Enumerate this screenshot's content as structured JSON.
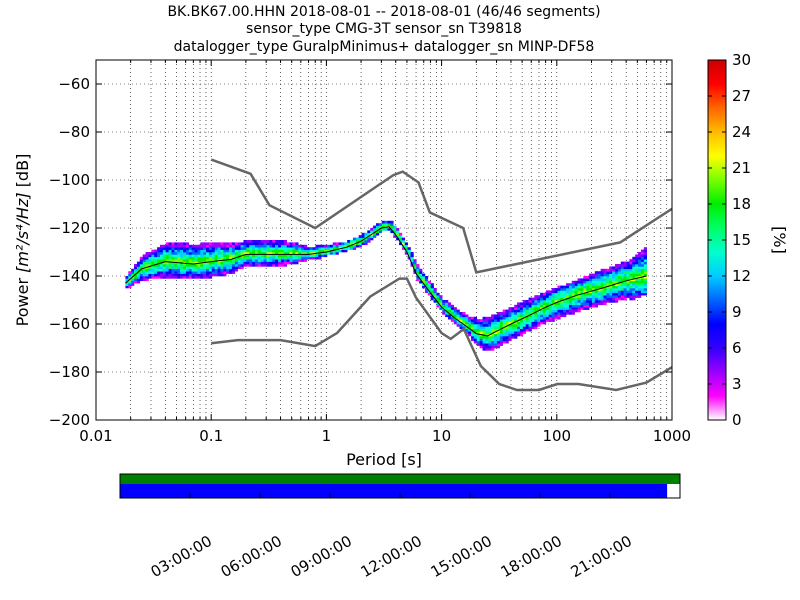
{
  "chart_data": {
    "type": "heatmap",
    "title": {
      "line1": "BK.BK67.00.HHN   2018-08-01 -- 2018-08-01  (46/46 segments)",
      "line2": "sensor_type CMG-3T sensor_sn T39818",
      "line3": "datalogger_type GuralpMinimus+ datalogger_sn MINP-DF58"
    },
    "xlabel": "Period [s]",
    "ylabel_prefix": "Power ",
    "ylabel_units": "[m²/s⁴/Hz]",
    "ylabel_suffix": " [dB]",
    "xscale": "log",
    "xlim": [
      0.01,
      1000
    ],
    "ylim": [
      -200,
      -50
    ],
    "grid": "dotted",
    "x_ticks": [
      {
        "value": 0.01,
        "label": "0.01"
      },
      {
        "value": 0.1,
        "label": "0.1"
      },
      {
        "value": 1,
        "label": "1"
      },
      {
        "value": 10,
        "label": "10"
      },
      {
        "value": 100,
        "label": "100"
      },
      {
        "value": 1000,
        "label": "1000"
      }
    ],
    "y_ticks": [
      {
        "value": -60,
        "label": "−60"
      },
      {
        "value": -80,
        "label": "−80"
      },
      {
        "value": -100,
        "label": "−100"
      },
      {
        "value": -120,
        "label": "−120"
      },
      {
        "value": -140,
        "label": "−140"
      },
      {
        "value": -160,
        "label": "−160"
      },
      {
        "value": -180,
        "label": "−180"
      },
      {
        "value": -200,
        "label": "−200"
      }
    ],
    "noise_models": {
      "color": "#666666",
      "high": [
        [
          0.1,
          -91.5
        ],
        [
          0.22,
          -97.4
        ],
        [
          0.32,
          -110.5
        ],
        [
          0.8,
          -120
        ],
        [
          3.8,
          -98
        ],
        [
          4.6,
          -96.5
        ],
        [
          6.3,
          -101
        ],
        [
          7.9,
          -113.5
        ],
        [
          15.4,
          -120
        ],
        [
          20,
          -138.5
        ],
        [
          354.8,
          -126
        ],
        [
          1000,
          -112
        ]
      ],
      "low": [
        [
          0.1,
          -168
        ],
        [
          0.17,
          -166.7
        ],
        [
          0.4,
          -166.7
        ],
        [
          0.8,
          -169.2
        ],
        [
          1.24,
          -163.7
        ],
        [
          2.4,
          -148.6
        ],
        [
          4.3,
          -141.1
        ],
        [
          5,
          -141.1
        ],
        [
          6,
          -149
        ],
        [
          10,
          -163.8
        ],
        [
          12,
          -166.2
        ],
        [
          15.6,
          -162.1
        ],
        [
          21.9,
          -177.5
        ],
        [
          31.6,
          -185
        ],
        [
          45,
          -187.5
        ],
        [
          70,
          -187.5
        ],
        [
          101,
          -185
        ],
        [
          154,
          -185
        ],
        [
          328,
          -187.5
        ],
        [
          600,
          -184.4
        ],
        [
          1000,
          -178
        ]
      ]
    },
    "psd_envelope": {
      "x": [
        0.018,
        0.025,
        0.04,
        0.07,
        0.1,
        0.15,
        0.2,
        0.3,
        0.5,
        0.7,
        1.0,
        1.5,
        2.0,
        2.5,
        3.0,
        3.5,
        4.0,
        5.0,
        6.0,
        8.0,
        10.0,
        13.0,
        17.0,
        20.0,
        25.0,
        30.0,
        40.0,
        60.0,
        80.0,
        100.0,
        150.0,
        250.0,
        400.0,
        600.0
      ],
      "top": [
        -141,
        -133,
        -126,
        -126,
        -126,
        -127,
        -126,
        -126,
        -127,
        -129,
        -128,
        -127,
        -124,
        -121,
        -118,
        -118,
        -121,
        -128,
        -136,
        -144,
        -150,
        -154,
        -157,
        -158,
        -157,
        -156,
        -154,
        -150,
        -148,
        -146,
        -143,
        -138,
        -135,
        -124
      ],
      "bottom": [
        -146,
        -143,
        -140,
        -141,
        -140,
        -139,
        -136,
        -137,
        -136,
        -134,
        -131,
        -129,
        -127,
        -124,
        -121,
        -121,
        -125,
        -132,
        -142,
        -150,
        -156,
        -161,
        -165,
        -169,
        -171,
        -170,
        -167,
        -163,
        -161,
        -160,
        -157,
        -152,
        -150,
        -147
      ],
      "mean": [
        -143,
        -137,
        -134,
        -135,
        -134,
        -133,
        -131,
        -131,
        -131,
        -131,
        -130,
        -128,
        -125.5,
        -122.5,
        -120,
        -119.5,
        -123,
        -130,
        -139,
        -147,
        -153,
        -157.5,
        -161.5,
        -164,
        -165,
        -163,
        -160,
        -156,
        -153,
        -151,
        -148,
        -145,
        -142,
        -140
      ]
    },
    "colorbar": {
      "label": "[%]",
      "min": 0,
      "max": 30,
      "ticks": [
        {
          "value": 0,
          "label": "0"
        },
        {
          "value": 3,
          "label": "3"
        },
        {
          "value": 6,
          "label": "6"
        },
        {
          "value": 9,
          "label": "9"
        },
        {
          "value": 12,
          "label": "12"
        },
        {
          "value": 15,
          "label": "15"
        },
        {
          "value": 18,
          "label": "18"
        },
        {
          "value": 21,
          "label": "21"
        },
        {
          "value": 24,
          "label": "24"
        },
        {
          "value": 27,
          "label": "27"
        },
        {
          "value": 30,
          "label": "30"
        }
      ],
      "colors": [
        "#ffffff",
        "#ff00ff",
        "#9900ff",
        "#3300ff",
        "#0000ff",
        "#0066ff",
        "#00ccff",
        "#00ffcc",
        "#00ff66",
        "#00ee00",
        "#77ff00",
        "#ffff00",
        "#ffbb00",
        "#ff6600",
        "#ff0000",
        "#cc0000"
      ]
    },
    "timeline": {
      "coverage_color": "#008000",
      "data_color": "#0000ff",
      "data_fraction": 0.977,
      "ticks": [
        {
          "hour": 3,
          "label": "03:00:00"
        },
        {
          "hour": 6,
          "label": "06:00:00"
        },
        {
          "hour": 9,
          "label": "09:00:00"
        },
        {
          "hour": 12,
          "label": "12:00:00"
        },
        {
          "hour": 15,
          "label": "15:00:00"
        },
        {
          "hour": 18,
          "label": "18:00:00"
        },
        {
          "hour": 21,
          "label": "21:00:00"
        }
      ]
    }
  }
}
